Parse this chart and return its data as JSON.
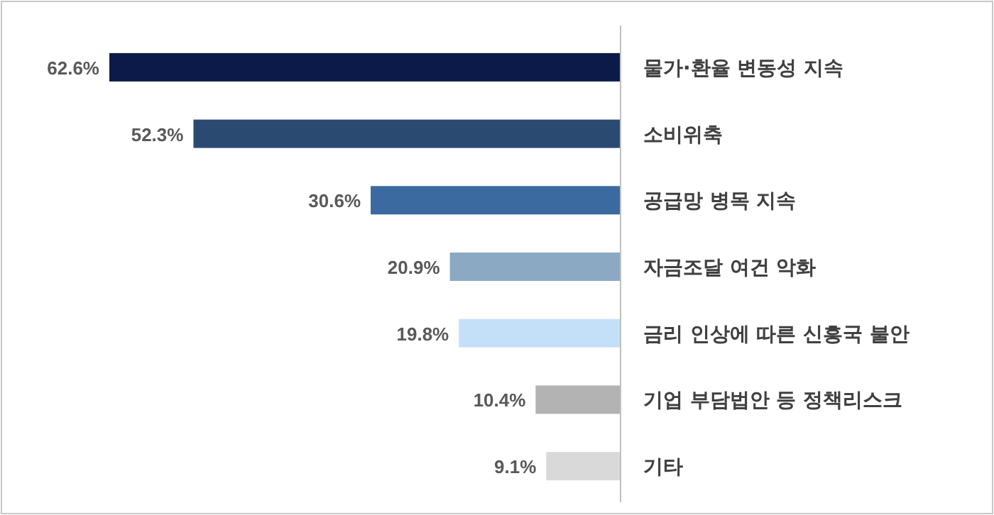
{
  "chart_data": {
    "type": "bar",
    "orientation": "horizontal",
    "categories": [
      "물가·환율 변동성 지속",
      "소비위축",
      "공급망 병목 지속",
      "자금조달 여건 악화",
      "금리 인상에 따른 신흥국 불안",
      "기업 부담법안 등 정책리스크",
      "기타"
    ],
    "values": [
      62.6,
      52.3,
      30.6,
      20.9,
      19.8,
      10.4,
      9.1
    ],
    "value_labels": [
      "62.6%",
      "52.3%",
      "30.6%",
      "20.9%",
      "19.8%",
      "10.4%",
      "9.1%"
    ],
    "colors": [
      "#0b1a48",
      "#2a4a72",
      "#3a6aa0",
      "#8ba9c2",
      "#c4e0f8",
      "#b3b3b3",
      "#d9d9d9"
    ]
  }
}
